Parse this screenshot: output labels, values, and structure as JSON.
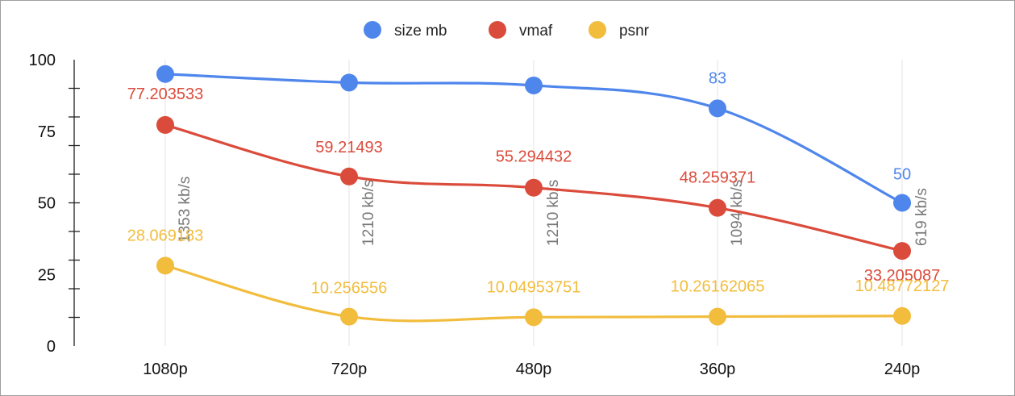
{
  "chart_data": {
    "type": "line",
    "categories": [
      "1080p",
      "720p",
      "480p",
      "360p",
      "240p"
    ],
    "ylim": [
      0,
      100
    ],
    "yticks": [
      "0",
      "25",
      "50",
      "75",
      "100"
    ],
    "grid": "vertical lines at categories",
    "legend_position": "top",
    "series": [
      {
        "name": "size mb",
        "color": "#4f86ec",
        "values": [
          95,
          92,
          91,
          83,
          50
        ],
        "labels": [
          "",
          "",
          "",
          "83",
          "50"
        ]
      },
      {
        "name": "vmaf",
        "color": "#db4b3b",
        "values": [
          77.203533,
          59.21493,
          55.294432,
          48.259371,
          33.205087
        ],
        "labels": [
          "77.203533",
          "59.21493",
          "55.294432",
          "48.259371",
          "33.205087"
        ]
      },
      {
        "name": "psnr",
        "color": "#f2bd3d",
        "values": [
          28.069183,
          10.256556,
          10.04953751,
          10.26162065,
          10.48772127
        ],
        "labels": [
          "28.069183",
          "10.256556",
          "10.04953751",
          "10.26162065",
          "10.48772127"
        ]
      }
    ],
    "annotations": [
      "1353 kb/s",
      "1210 kb/s",
      "1210 kb/s",
      "1094 kb/s",
      "619 kb/s"
    ]
  }
}
